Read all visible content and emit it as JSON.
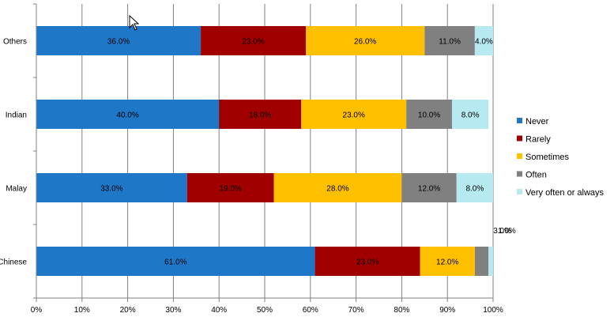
{
  "chart_data": {
    "type": "bar",
    "orientation": "horizontal",
    "stacked": true,
    "categories": [
      "Others",
      "Indian",
      "Malay",
      "Chinese"
    ],
    "series": [
      {
        "name": "Never",
        "color": "#1F77C8",
        "values": [
          36.0,
          40.0,
          33.0,
          61.0
        ]
      },
      {
        "name": "Rarely",
        "color": "#A00000",
        "values": [
          23.0,
          18.0,
          19.0,
          23.0
        ]
      },
      {
        "name": "Sometimes",
        "color": "#FFC000",
        "values": [
          26.0,
          23.0,
          28.0,
          12.0
        ]
      },
      {
        "name": "Often",
        "color": "#808080",
        "values": [
          11.0,
          10.0,
          12.0,
          3.0
        ]
      },
      {
        "name": "Very often or always",
        "color": "#B7E9F0",
        "values": [
          4.0,
          8.0,
          8.0,
          1.0
        ]
      }
    ],
    "data_labels": [
      [
        "36.0%",
        "40.0%",
        "33.0%",
        "61.0%"
      ],
      [
        "23.0%",
        "18.0%",
        "19.0%",
        "23.0%"
      ],
      [
        "26.0%",
        "23.0%",
        "28.0%",
        "12.0%"
      ],
      [
        "11.0%",
        "10.0%",
        "12.0%",
        "3.0%"
      ],
      [
        "4.0%",
        "8.0%",
        "8.0%",
        "1.0%"
      ]
    ],
    "xlim": [
      0,
      100
    ],
    "x_ticks": [
      "0%",
      "10%",
      "20%",
      "30%",
      "40%",
      "50%",
      "60%",
      "70%",
      "80%",
      "90%",
      "100%"
    ],
    "grid": "vertical",
    "legend_position": "right",
    "title": "",
    "xlabel": "",
    "ylabel": ""
  }
}
